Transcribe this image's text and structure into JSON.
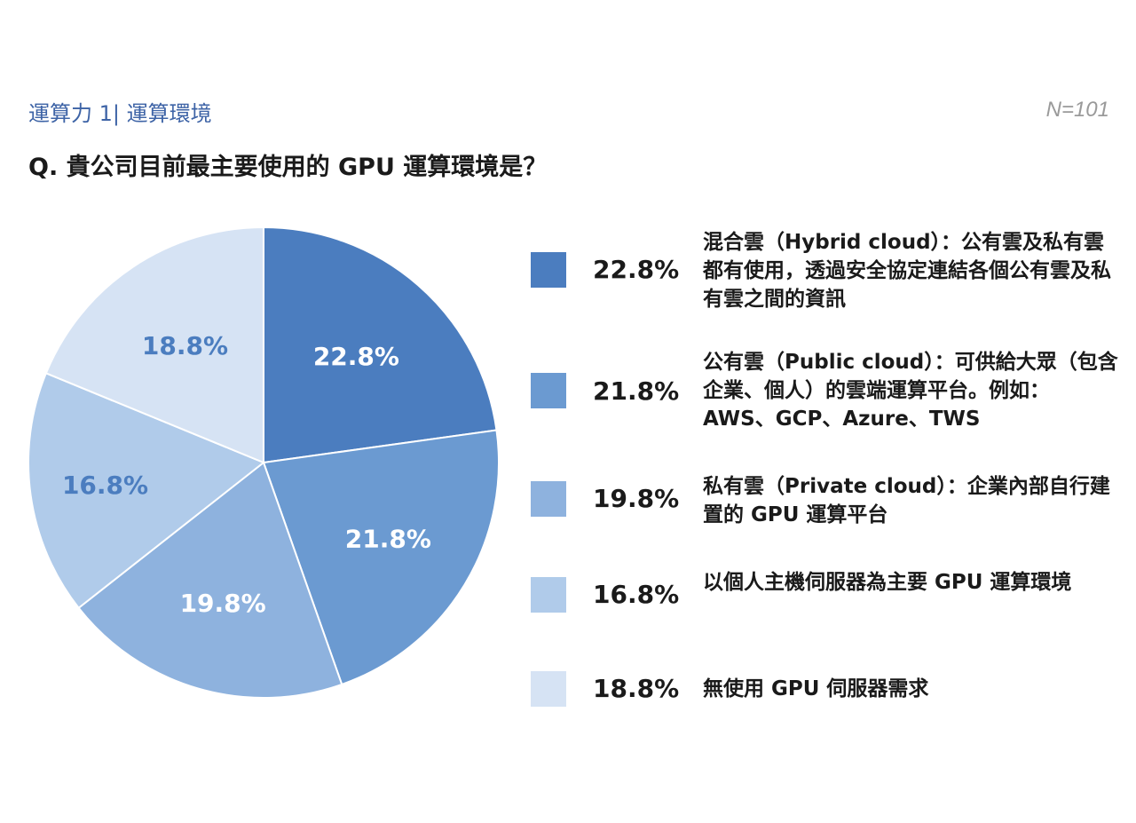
{
  "header": {
    "section_label": "運算力 1| 運算環境",
    "sample_size": "N=101",
    "question": "Q. 貴公司目前最主要使用的 GPU 運算環境是？"
  },
  "colors": {
    "series": [
      "#4b7dbf",
      "#6b9ad1",
      "#8eb2de",
      "#b0cbea",
      "#d6e3f4"
    ],
    "label_light": "#ffffff",
    "label_dark": "#4b7dbf"
  },
  "chart_data": {
    "type": "pie",
    "title": "",
    "slices": [
      {
        "label": "混合雲（Hybrid cloud）：公有雲及私有雲都有使用，透過安全協定連結各個公有雲及私有雲之間的資訊",
        "value": 22.8,
        "display": "22.8%"
      },
      {
        "label": "公有雲（Public cloud）：可供給大眾（包含企業、個人）的雲端運算平台。例如：AWS、GCP、Azure、TWS",
        "value": 21.8,
        "display": "21.8%"
      },
      {
        "label": "私有雲（Private cloud）：企業內部自行建置的 GPU 運算平台",
        "value": 19.8,
        "display": "19.8%"
      },
      {
        "label": "以個人主機伺服器為主要 GPU 運算環境",
        "value": 16.8,
        "display": "16.8%"
      },
      {
        "label": "無使用 GPU 伺服器需求",
        "value": 18.8,
        "display": "18.8%"
      }
    ],
    "start_angle": "12 o'clock",
    "direction": "clockwise",
    "legend_position": "right"
  }
}
